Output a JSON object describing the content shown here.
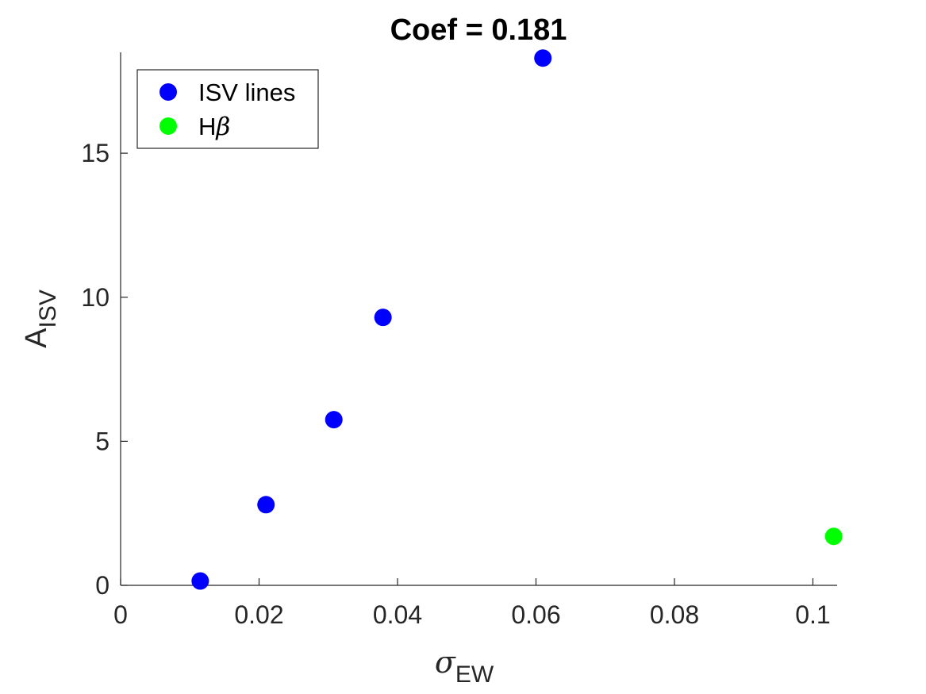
{
  "chart_data": {
    "type": "scatter",
    "title": "Coef = 0.181",
    "xlabel": {
      "main": "σ",
      "sub": "EW"
    },
    "ylabel": {
      "main": "A",
      "sub": "ISV"
    },
    "xlim": [
      0,
      0.1035
    ],
    "ylim": [
      0,
      18.5
    ],
    "xticks": [
      0,
      0.02,
      0.04,
      0.06,
      0.08,
      0.1
    ],
    "xtick_labels": [
      "0",
      "0.02",
      "0.04",
      "0.06",
      "0.08",
      "0.1"
    ],
    "yticks": [
      0,
      5,
      10,
      15
    ],
    "ytick_labels": [
      "0",
      "5",
      "10",
      "15"
    ],
    "grid": false,
    "legend_position": "top-left",
    "series": [
      {
        "name": "ISV lines",
        "legend_text": "ISV lines",
        "color": "#0000ff",
        "points": [
          {
            "x": 0.0115,
            "y": 0.15
          },
          {
            "x": 0.021,
            "y": 2.8
          },
          {
            "x": 0.0308,
            "y": 5.75
          },
          {
            "x": 0.0379,
            "y": 9.3
          },
          {
            "x": 0.061,
            "y": 18.3
          }
        ]
      },
      {
        "name": "Hβ",
        "legend_text": {
          "main": "H",
          "greek": "β"
        },
        "color": "#00ff00",
        "points": [
          {
            "x": 0.103,
            "y": 1.7
          }
        ]
      }
    ]
  }
}
